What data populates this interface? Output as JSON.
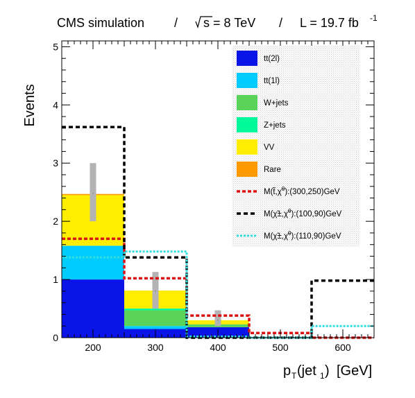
{
  "chart_data": {
    "type": "bar",
    "header": {
      "experiment": "CMS simulation",
      "sep1": "/",
      "energy_prefix": "s = 8 TeV",
      "sep2": "/",
      "lumi": "L = 19.7 fb",
      "lumi_exp": "-1"
    },
    "xlabel_main": "p",
    "xlabel_sub": "T",
    "xlabel_jet": "(jet",
    "xlabel_jet_sub": "1",
    "xlabel_close": ")",
    "xlabel_unit": "[GeV]",
    "ylabel": "Events",
    "xlim": [
      150,
      650
    ],
    "ylim": [
      0,
      5.1
    ],
    "xticks": [
      200,
      300,
      400,
      500,
      600
    ],
    "yticks": [
      0,
      1,
      2,
      3,
      4,
      5
    ],
    "bin_edges": [
      150,
      250,
      350,
      450,
      550,
      650
    ],
    "stack": [
      {
        "name": "tt(2l)",
        "color": "#0a14e8",
        "values": [
          1.0,
          0.15,
          0.18,
          0.0,
          0.0
        ]
      },
      {
        "name": "tt(1l)",
        "color": "#00ccff",
        "values": [
          0.58,
          0.05,
          0.0,
          0.0,
          0.0
        ]
      },
      {
        "name": "W+jets",
        "color": "#5ad35a",
        "values": [
          0.0,
          0.27,
          0.05,
          0.0,
          0.0
        ]
      },
      {
        "name": "Z+jets",
        "color": "#00fa9a",
        "values": [
          0.0,
          0.03,
          0.0,
          0.0,
          0.0
        ]
      },
      {
        "name": "VV",
        "color": "#ffee00",
        "values": [
          0.87,
          0.31,
          0.07,
          0.0,
          0.0
        ]
      },
      {
        "name": "Rare",
        "color": "#ff9900",
        "values": [
          0.02,
          0.0,
          0.0,
          0.0,
          0.0
        ]
      }
    ],
    "uncertainty": {
      "center": [
        2.48,
        0.8,
        0.3,
        0.0,
        0.0
      ],
      "low": [
        2.0,
        0.5,
        0.2,
        0.0,
        0.0
      ],
      "high": [
        3.0,
        1.13,
        0.47,
        0.0,
        0.0
      ]
    },
    "signals": [
      {
        "label_prefix": "M(",
        "label_particles": "t̃,χ̃",
        "label_sup": "0",
        "label_suffix": "):(300,250)GeV",
        "color": "#dd1111",
        "dash": "5,3",
        "width": 3.5,
        "values": [
          1.7,
          1.02,
          0.38,
          0.08,
          0.0
        ]
      },
      {
        "label_prefix": "M(",
        "label_particles": "χ̃±,χ̃",
        "label_sup": "0",
        "label_suffix": "):(100,90)GeV",
        "color": "#000000",
        "dash": "6,4",
        "width": 3.5,
        "values": [
          3.62,
          1.38,
          0.0,
          0.0,
          0.98
        ]
      },
      {
        "label_prefix": "M(",
        "label_particles": "χ̃±,χ̃",
        "label_sup": "0",
        "label_suffix": "):(110,90)GeV",
        "color": "#33dddd",
        "dash": "3,2",
        "width": 3,
        "values": [
          1.38,
          1.48,
          0.02,
          0.0,
          0.2
        ]
      }
    ]
  }
}
